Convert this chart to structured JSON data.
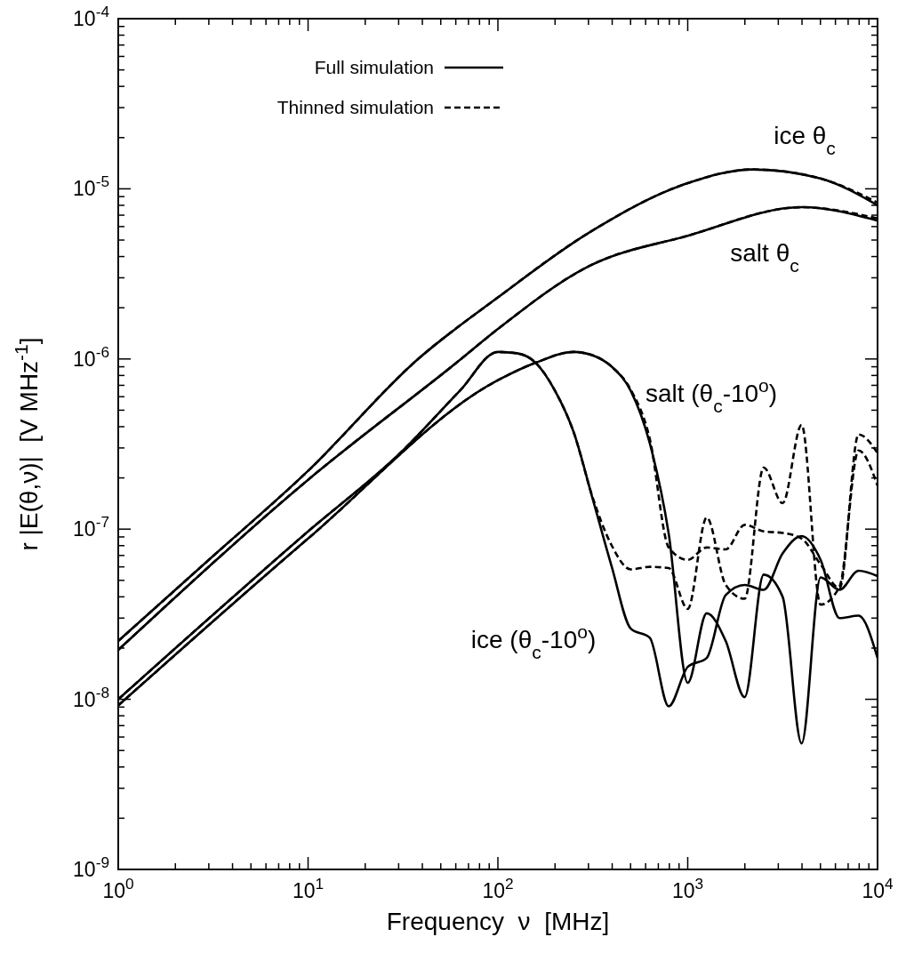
{
  "chart_data": {
    "type": "line",
    "xlabel": "Frequency  ν  [MHz]",
    "ylabel": "r |E(θ,ν)|  [V MHz$^{-1}$]",
    "log": "xy",
    "xlim": [
      1,
      10000
    ],
    "ylim": [
      1e-09,
      0.0001
    ],
    "xticks": [
      {
        "value": 1,
        "label": "10$^{0}$"
      },
      {
        "value": 2,
        "label": null
      },
      {
        "value": 3,
        "label": null
      },
      {
        "value": 4,
        "label": null
      },
      {
        "value": 5,
        "label": null
      },
      {
        "value": 6,
        "label": null
      },
      {
        "value": 7,
        "label": null
      },
      {
        "value": 8,
        "label": null
      },
      {
        "value": 9,
        "label": null
      },
      {
        "value": 10,
        "label": "10$^{1}$"
      },
      {
        "value": 20,
        "label": null
      },
      {
        "value": 30,
        "label": null
      },
      {
        "value": 40,
        "label": null
      },
      {
        "value": 50,
        "label": null
      },
      {
        "value": 60,
        "label": null
      },
      {
        "value": 70,
        "label": null
      },
      {
        "value": 80,
        "label": null
      },
      {
        "value": 90,
        "label": null
      },
      {
        "value": 100,
        "label": "10$^{2}$"
      },
      {
        "value": 200,
        "label": null
      },
      {
        "value": 300,
        "label": null
      },
      {
        "value": 400,
        "label": null
      },
      {
        "value": 500,
        "label": null
      },
      {
        "value": 600,
        "label": null
      },
      {
        "value": 700,
        "label": null
      },
      {
        "value": 800,
        "label": null
      },
      {
        "value": 900,
        "label": null
      },
      {
        "value": 1000,
        "label": "10$^{3}$"
      },
      {
        "value": 2000,
        "label": null
      },
      {
        "value": 3000,
        "label": null
      },
      {
        "value": 4000,
        "label": null
      },
      {
        "value": 5000,
        "label": null
      },
      {
        "value": 6000,
        "label": null
      },
      {
        "value": 7000,
        "label": null
      },
      {
        "value": 8000,
        "label": null
      },
      {
        "value": 9000,
        "label": null
      },
      {
        "value": 10000,
        "label": "10$^{4}$"
      }
    ],
    "yticks": [
      {
        "value": 1e-09,
        "label": "10$^{-9}$"
      },
      {
        "value": 2e-09,
        "label": null
      },
      {
        "value": 3e-09,
        "label": null
      },
      {
        "value": 4e-09,
        "label": null
      },
      {
        "value": 5e-09,
        "label": null
      },
      {
        "value": 6e-09,
        "label": null
      },
      {
        "value": 7e-09,
        "label": null
      },
      {
        "value": 8e-09,
        "label": null
      },
      {
        "value": 9e-09,
        "label": null
      },
      {
        "value": 1e-08,
        "label": "10$^{-8}$"
      },
      {
        "value": 2e-08,
        "label": null
      },
      {
        "value": 3e-08,
        "label": null
      },
      {
        "value": 4e-08,
        "label": null
      },
      {
        "value": 5e-08,
        "label": null
      },
      {
        "value": 6e-08,
        "label": null
      },
      {
        "value": 7e-08,
        "label": null
      },
      {
        "value": 8e-08,
        "label": null
      },
      {
        "value": 9e-08,
        "label": null
      },
      {
        "value": 1e-07,
        "label": "10$^{-7}$"
      },
      {
        "value": 2e-07,
        "label": null
      },
      {
        "value": 3e-07,
        "label": null
      },
      {
        "value": 4e-07,
        "label": null
      },
      {
        "value": 5e-07,
        "label": null
      },
      {
        "value": 6e-07,
        "label": null
      },
      {
        "value": 7e-07,
        "label": null
      },
      {
        "value": 8e-07,
        "label": null
      },
      {
        "value": 9e-07,
        "label": null
      },
      {
        "value": 1e-06,
        "label": "10$^{-6}$"
      },
      {
        "value": 2e-06,
        "label": null
      },
      {
        "value": 3e-06,
        "label": null
      },
      {
        "value": 4e-06,
        "label": null
      },
      {
        "value": 5e-06,
        "label": null
      },
      {
        "value": 6e-06,
        "label": null
      },
      {
        "value": 7e-06,
        "label": null
      },
      {
        "value": 8e-06,
        "label": null
      },
      {
        "value": 9e-06,
        "label": null
      },
      {
        "value": 1e-05,
        "label": "10$^{-5}$"
      },
      {
        "value": 2e-05,
        "label": null
      },
      {
        "value": 3e-05,
        "label": null
      },
      {
        "value": 4e-05,
        "label": null
      },
      {
        "value": 5e-05,
        "label": null
      },
      {
        "value": 6e-05,
        "label": null
      },
      {
        "value": 7e-05,
        "label": null
      },
      {
        "value": 8e-05,
        "label": null
      },
      {
        "value": 9e-05,
        "label": null
      },
      {
        "value": 0.0001,
        "label": "10$^{-4}$"
      }
    ],
    "legend": "top left",
    "grid": false,
    "marker": "none",
    "series": [
      {
        "name": "Full simulation",
        "color": "#000000",
        "line_style": "solid",
        "x": [
          1,
          3,
          10,
          38,
          100,
          300,
          1000,
          2200,
          5000,
          10000
        ],
        "values": [
          2.2e-08,
          6.6e-08,
          2.2e-07,
          1e-06,
          2.3e-06,
          5.5e-06,
          1.08e-05,
          1.3e-05,
          1.15e-05,
          8e-06
        ]
      },
      {
        "name": "Thinned simulation",
        "color": "#000000",
        "line_style": "dashed",
        "x": [
          1,
          3,
          10,
          38,
          100,
          300,
          1000,
          2200,
          5000,
          10000
        ],
        "values": [
          2.2e-08,
          6.6e-08,
          2.2e-07,
          1e-06,
          2.3e-06,
          5.5e-06,
          1.08e-05,
          1.3e-05,
          1.15e-05,
          8.3e-06
        ]
      },
      {
        "color": "#000000",
        "line_style": "solid",
        "x": [
          1,
          10,
          64,
          100,
          300,
          1000,
          4000,
          10000
        ],
        "values": [
          1.95e-08,
          1.95e-07,
          1e-06,
          1.5e-06,
          3.5e-06,
          5.3e-06,
          7.8e-06,
          6.5e-06
        ]
      },
      {
        "color": "#000000",
        "line_style": "dashed",
        "x": [
          1,
          10,
          64,
          100,
          300,
          1000,
          4000,
          10000
        ],
        "values": [
          1.95e-08,
          1.95e-07,
          1e-06,
          1.5e-06,
          3.5e-06,
          5.3e-06,
          7.8e-06,
          6.7e-06
        ]
      },
      {
        "color": "#000000",
        "line_style": "solid",
        "x": [
          1,
          10,
          31.6,
          63,
          100,
          126,
          158,
          200,
          251,
          316,
          398,
          501,
          631,
          794,
          1000,
          1259,
          1585,
          1995,
          2512,
          3162,
          3981,
          5012,
          6310,
          7943,
          10000
        ],
        "values": [
          1e-08,
          9.7e-08,
          2.9e-07,
          6.5e-07,
          1.1e-06,
          1.08e-06,
          9.5e-07,
          6.5e-07,
          3.7e-07,
          1.5e-07,
          6e-08,
          2.6e-08,
          2.3e-08,
          9.1e-09,
          1.55e-08,
          1.75e-08,
          4.1e-08,
          4.7e-08,
          4.4e-08,
          7.2e-08,
          9.1e-08,
          6.6e-08,
          3e-08,
          3.1e-08,
          1.75e-08
        ]
      },
      {
        "color": "#000000",
        "line_style": "dashed",
        "x": [
          1,
          10,
          31.6,
          63,
          100,
          126,
          158,
          200,
          251,
          316,
          398,
          501,
          631,
          794,
          1000,
          1259,
          1585,
          1995,
          2512,
          3162,
          3981,
          5012,
          6310,
          7943,
          10000
        ],
        "values": [
          1e-08,
          9.7e-08,
          2.9e-07,
          6.5e-07,
          1.1e-06,
          1.08e-06,
          9.5e-07,
          6.5e-07,
          3.7e-07,
          1.53e-07,
          8e-08,
          5.8e-08,
          6e-08,
          5.9e-08,
          3.4e-08,
          1.17e-07,
          4.7e-08,
          3.9e-08,
          2.3e-07,
          1.42e-07,
          4.1e-07,
          3.6e-08,
          4.6e-08,
          2.9e-07,
          1.8e-07
        ]
      },
      {
        "color": "#000000",
        "line_style": "solid",
        "x": [
          1,
          10,
          100,
          158,
          251,
          316,
          398,
          501,
          631,
          794,
          1000,
          1259,
          1585,
          1995,
          2512,
          3162,
          3981,
          5012,
          6310,
          7943,
          10000
        ],
        "values": [
          9.2e-09,
          8.8e-08,
          7.5e-07,
          9.5e-07,
          1.1e-06,
          1.05e-06,
          9e-07,
          6.5e-07,
          3.2e-07,
          9.4e-08,
          1.25e-08,
          3.2e-08,
          2.2e-08,
          1.03e-08,
          5.4e-08,
          4e-08,
          5.5e-09,
          5.2e-08,
          4.4e-08,
          5.7e-08,
          5.3e-08
        ]
      },
      {
        "color": "#000000",
        "line_style": "dashed",
        "x": [
          1,
          10,
          100,
          158,
          251,
          316,
          398,
          501,
          631,
          794,
          1000,
          1259,
          1585,
          1995,
          2512,
          3162,
          3981,
          5012,
          6310,
          7943,
          10000
        ],
        "values": [
          9.2e-09,
          8.8e-08,
          7.5e-07,
          9.5e-07,
          1.1e-06,
          1.05e-06,
          9e-07,
          6.6e-07,
          3.4e-07,
          7.8e-08,
          6.6e-08,
          7.8e-08,
          7.6e-08,
          1.06e-07,
          9.7e-08,
          9.5e-08,
          8.8e-08,
          6.2e-08,
          4.5e-08,
          3.6e-07,
          2.8e-07
        ]
      }
    ],
    "annotations": [
      "ice θ$_{c}$",
      "salt θ$_{c}$",
      "salt (θ$_{c}$-10$^{o}$)",
      "ice (θ$_{c}$-10$^{o}$)"
    ]
  }
}
